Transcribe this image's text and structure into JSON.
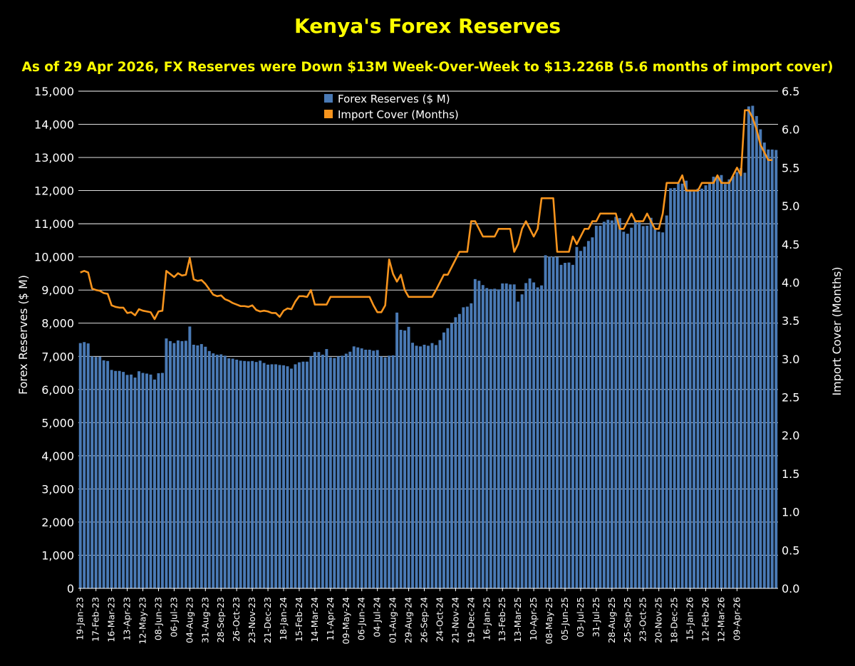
{
  "chart_data": {
    "type": "bar+line",
    "title": "Kenya's Forex Reserves",
    "subtitle": "As of 29 Apr 2026, FX Reserves were Down $13M Week-Over-Week to $13.226B (5.6 months of import cover)",
    "ylabel": "Forex Reserves ($ M)",
    "y2label": "Import Cover (Months)",
    "ylim": [
      0,
      15000
    ],
    "y2lim": [
      0,
      6.5
    ],
    "yticks": [
      "0",
      "1,000",
      "2,000",
      "3,000",
      "4,000",
      "5,000",
      "6,000",
      "7,000",
      "8,000",
      "9,000",
      "10,000",
      "11,000",
      "12,000",
      "13,000",
      "14,000",
      "15,000"
    ],
    "y2ticks": [
      "0.0",
      "0.5",
      "1.0",
      "1.5",
      "2.0",
      "2.5",
      "3.0",
      "3.5",
      "4.0",
      "4.5",
      "5.0",
      "5.5",
      "6.0",
      "6.5"
    ],
    "xtick_labels": [
      "19-Jan-23",
      "17-Feb-23",
      "16-Mar-23",
      "13-Apr-23",
      "12-May-23",
      "08-Jun-23",
      "06-Jul-23",
      "04-Aug-23",
      "31-Aug-23",
      "28-Sep-23",
      "26-Oct-23",
      "23-Nov-23",
      "21-Dec-23",
      "18-Jan-24",
      "15-Feb-24",
      "14-Mar-24",
      "11-Apr-24",
      "09-May-24",
      "06-Jun-24",
      "04-Jul-24",
      "01-Aug-24",
      "29-Aug-24",
      "26-Sep-24",
      "24-Oct-24",
      "21-Nov-24",
      "19-Dec-24",
      "16-Jan-25",
      "13-Feb-25",
      "13-Mar-25",
      "10-Apr-25",
      "08-May-25",
      "05-Jun-25",
      "03-Jul-25",
      "31-Jul-25",
      "28-Aug-25",
      "25-Sep-25",
      "23-Oct-25",
      "20-Nov-25",
      "18-Dec-25",
      "15-Jan-26",
      "12-Feb-26",
      "12-Mar-26",
      "09-Apr-26"
    ],
    "xtick_every": 4,
    "grid": true,
    "legend_position": "top-center",
    "colors": {
      "bars": "#4a7ab5",
      "line": "#f7941d",
      "title": "#ffff00",
      "grid": "#ffffff",
      "background": "#000000"
    },
    "series": [
      {
        "name": "Forex Reserves ($ M)",
        "type": "bar",
        "values": [
          7400,
          7430,
          7390,
          7000,
          6980,
          6990,
          6880,
          6860,
          6590,
          6560,
          6560,
          6530,
          6440,
          6450,
          6360,
          6550,
          6500,
          6480,
          6450,
          6300,
          6490,
          6500,
          7540,
          7460,
          7400,
          7480,
          7460,
          7470,
          7900,
          7350,
          7330,
          7370,
          7290,
          7160,
          7090,
          7050,
          7060,
          7020,
          6940,
          6930,
          6900,
          6870,
          6860,
          6850,
          6860,
          6830,
          6870,
          6800,
          6750,
          6760,
          6760,
          6740,
          6730,
          6700,
          6630,
          6760,
          6820,
          6840,
          6840,
          7000,
          7130,
          7130,
          7050,
          7220,
          6970,
          6950,
          7000,
          7020,
          7080,
          7140,
          7300,
          7270,
          7240,
          7200,
          7200,
          7170,
          7190,
          7000,
          6970,
          7020,
          7030,
          8320,
          7800,
          7780,
          7890,
          7410,
          7320,
          7300,
          7350,
          7320,
          7400,
          7340,
          7490,
          7720,
          7850,
          8000,
          8180,
          8280,
          8480,
          8500,
          8600,
          9330,
          9280,
          9150,
          9060,
          9030,
          9040,
          9020,
          9200,
          9200,
          9170,
          9170,
          8650,
          8870,
          9210,
          9350,
          9230,
          9080,
          9140,
          10050,
          10010,
          10010,
          9990,
          9760,
          9820,
          9830,
          9760,
          10300,
          10180,
          10310,
          10480,
          10590,
          10940,
          10940,
          11060,
          11120,
          11100,
          11210,
          11170,
          10760,
          10700,
          10880,
          11090,
          11040,
          10930,
          10940,
          11180,
          10850,
          10760,
          10740,
          11250,
          12070,
          12080,
          12220,
          12210,
          12300,
          11980,
          11970,
          12060,
          12060,
          12160,
          12220,
          12420,
          12420,
          12470,
          12200,
          12340,
          12440,
          12560,
          12680,
          12540,
          14540,
          14560,
          14250,
          13850,
          13450,
          13240,
          13239,
          13226
        ]
      },
      {
        "name": "Import Cover (Months)",
        "type": "line",
        "values": [
          4.13,
          4.15,
          4.13,
          3.92,
          3.9,
          3.89,
          3.86,
          3.85,
          3.7,
          3.68,
          3.67,
          3.67,
          3.6,
          3.61,
          3.57,
          3.65,
          3.63,
          3.62,
          3.61,
          3.52,
          3.62,
          3.63,
          4.15,
          4.11,
          4.07,
          4.12,
          4.09,
          4.1,
          4.32,
          4.04,
          4.02,
          4.03,
          3.98,
          3.91,
          3.84,
          3.82,
          3.83,
          3.78,
          3.76,
          3.73,
          3.71,
          3.69,
          3.69,
          3.68,
          3.7,
          3.64,
          3.62,
          3.63,
          3.62,
          3.6,
          3.6,
          3.55,
          3.63,
          3.66,
          3.65,
          3.75,
          3.82,
          3.82,
          3.81,
          3.9,
          3.71,
          3.71,
          3.71,
          3.71,
          3.81,
          3.81,
          3.81,
          3.81,
          3.81,
          3.81,
          3.81,
          3.81,
          3.81,
          3.81,
          3.81,
          3.7,
          3.61,
          3.61,
          3.7,
          4.3,
          4.11,
          4.01,
          4.1,
          3.9,
          3.81,
          3.81,
          3.81,
          3.81,
          3.81,
          3.81,
          3.81,
          3.9,
          4.0,
          4.1,
          4.1,
          4.2,
          4.3,
          4.4,
          4.4,
          4.4,
          4.8,
          4.8,
          4.7,
          4.6,
          4.6,
          4.6,
          4.6,
          4.7,
          4.7,
          4.7,
          4.7,
          4.4,
          4.5,
          4.7,
          4.8,
          4.7,
          4.6,
          4.7,
          5.1,
          5.1,
          5.1,
          5.1,
          4.4,
          4.4,
          4.4,
          4.4,
          4.6,
          4.5,
          4.6,
          4.7,
          4.7,
          4.8,
          4.8,
          4.9,
          4.9,
          4.9,
          4.9,
          4.9,
          4.7,
          4.7,
          4.8,
          4.9,
          4.8,
          4.8,
          4.8,
          4.9,
          4.8,
          4.7,
          4.7,
          4.9,
          5.3,
          5.3,
          5.3,
          5.3,
          5.4,
          5.2,
          5.2,
          5.2,
          5.2,
          5.3,
          5.3,
          5.3,
          5.3,
          5.4,
          5.3,
          5.3,
          5.3,
          5.4,
          5.5,
          5.4,
          6.25,
          6.25,
          6.15,
          6.0,
          5.8,
          5.7,
          5.6,
          5.6
        ]
      }
    ]
  }
}
